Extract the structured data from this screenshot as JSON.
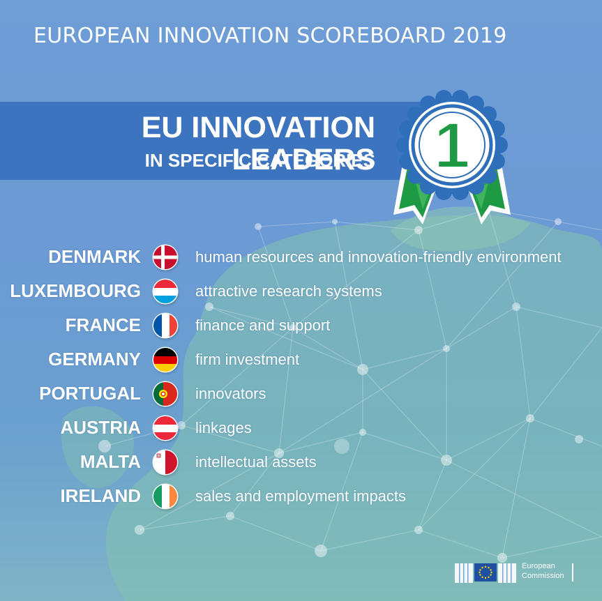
{
  "header": {
    "title": "EUROPEAN INNOVATION SCOREBOARD 2019"
  },
  "banner": {
    "title": "EU INNOVATION LEADERS",
    "subtitle": "IN SPECIFIC CATEGORIES"
  },
  "award": {
    "number": "1",
    "colors": {
      "ring": "#2f6fba",
      "number": "#1f9a44",
      "ribbon": "#1f9a44"
    }
  },
  "leaders": [
    {
      "country": "DENMARK",
      "category": "human resources and innovation-friendly environment",
      "flag_icon": "denmark-flag-icon"
    },
    {
      "country": "LUXEMBOURG",
      "category": "attractive research systems",
      "flag_icon": "luxembourg-flag-icon"
    },
    {
      "country": "FRANCE",
      "category": "finance and support",
      "flag_icon": "france-flag-icon"
    },
    {
      "country": "GERMANY",
      "category": "firm investment",
      "flag_icon": "germany-flag-icon"
    },
    {
      "country": "PORTUGAL",
      "category": "innovators",
      "flag_icon": "portugal-flag-icon"
    },
    {
      "country": "AUSTRIA",
      "category": "linkages",
      "flag_icon": "austria-flag-icon"
    },
    {
      "country": "MALTA",
      "category": "intellectual assets",
      "flag_icon": "malta-flag-icon"
    },
    {
      "country": "IRELAND",
      "category": "sales and employment impacts",
      "flag_icon": "ireland-flag-icon"
    }
  ],
  "footer": {
    "logo_line1": "European",
    "logo_line2": "Commission"
  },
  "colors": {
    "background": "#6b9ad4",
    "banner": "#3c74bf",
    "land": "#7fbfae",
    "text": "#ffffff"
  }
}
